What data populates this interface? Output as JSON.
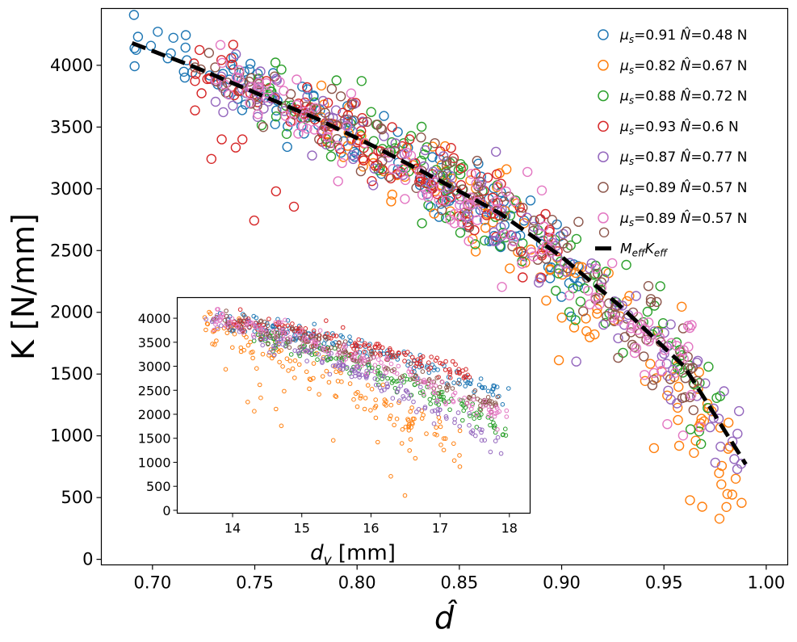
{
  "chart_data": [
    {
      "type": "scatter",
      "role": "main",
      "xlabel": "d̂",
      "ylabel": "K [N/mm]",
      "xlim": [
        0.675,
        1.0105
      ],
      "ylim": [
        -45,
        4460
      ],
      "xticks": [
        0.7,
        0.75,
        0.8,
        0.85,
        0.9,
        0.95,
        1.0
      ],
      "xtick_labels": [
        "0.70",
        "0.75",
        "0.80",
        "0.85",
        "0.90",
        "0.95",
        "1.00"
      ],
      "yticks": [
        0,
        500,
        1000,
        1500,
        2000,
        2500,
        3000,
        3500,
        4000
      ],
      "ytick_labels": [
        "0",
        "500",
        "1000",
        "1500",
        "2000",
        "2500",
        "3000",
        "3500",
        "4000"
      ],
      "legend_position": "top-right",
      "series": [
        {
          "name": "μs=0.91 N̂=0.48 N",
          "mu": "0.91",
          "n": "0.48 N",
          "color": "#1f77b4",
          "x_range": [
            0.69,
            0.91
          ],
          "trend": "approximately following the fit curve, tight spread"
        },
        {
          "name": "μs=0.82 N̂=0.67 N",
          "mu": "0.82",
          "n": "0.67 N",
          "color": "#ff7f0e",
          "x_range": [
            0.78,
            0.99
          ],
          "trend": "below the fit curve at high d̂, wide scatter down to ~150 N/mm"
        },
        {
          "name": "μs=0.88 N̂=0.72 N",
          "mu": "0.88",
          "n": "0.72 N",
          "color": "#2ca02c",
          "x_range": [
            0.75,
            0.98
          ],
          "trend": "along the fit curve"
        },
        {
          "name": "μs=0.93 N̂=0.6 N",
          "mu": "0.93",
          "n": "0.6 N",
          "color": "#d62728",
          "x_range": [
            0.72,
            0.9
          ],
          "trend": "along the fit curve, scattered low points near d̂≈0.72–0.76"
        },
        {
          "name": "μs=0.87 N̂=0.77 N",
          "mu": "0.87",
          "n": "0.77 N",
          "color": "#9467bd",
          "x_range": [
            0.73,
            0.99
          ],
          "trend": "along the fit curve to d̂≈0.99"
        },
        {
          "name": "μs=0.89 N̂=0.57 N",
          "mu": "0.89",
          "n": "0.57 N",
          "color": "#8c564b",
          "x_range": [
            0.72,
            0.97
          ],
          "trend": "along the fit curve"
        },
        {
          "name": "μs=0.89 N̂=0.57 N",
          "mu": "0.89",
          "n": "0.57 N",
          "color": "#e377c2",
          "x_range": [
            0.73,
            0.97
          ],
          "trend": "along the fit curve"
        }
      ],
      "fit": {
        "name": "M_eff K_eff",
        "color": "#000000",
        "x": [
          0.69,
          0.72,
          0.75,
          0.78,
          0.81,
          0.84,
          0.87,
          0.9,
          0.93,
          0.96,
          0.99
        ],
        "y": [
          4180,
          3990,
          3780,
          3570,
          3330,
          3070,
          2800,
          2450,
          2030,
          1560,
          770
        ]
      }
    },
    {
      "type": "scatter",
      "role": "inset",
      "xlabel": "dv [mm]",
      "ylabel": "",
      "xlim": [
        13.2,
        18.3
      ],
      "ylim": [
        -60,
        4430
      ],
      "xticks": [
        14,
        15,
        16,
        17,
        18
      ],
      "xtick_labels": [
        "14",
        "15",
        "16",
        "17",
        "18"
      ],
      "yticks": [
        0,
        500,
        1000,
        1500,
        2000,
        2500,
        3000,
        3500,
        4000
      ],
      "ytick_labels": [
        "0",
        "500",
        "1000",
        "1500",
        "2000",
        "2500",
        "3000",
        "3500",
        "4000"
      ],
      "series": [
        {
          "color": "#1f77b4",
          "x_range": [
            13.8,
            18.0
          ],
          "y_start": 4020,
          "y_end": 2350
        },
        {
          "color": "#ff7f0e",
          "x_range": [
            13.5,
            17.3
          ],
          "y_start": 3850,
          "y_end": 1150
        },
        {
          "color": "#2ca02c",
          "x_range": [
            14.3,
            18.0
          ],
          "y_start": 3650,
          "y_end": 1600
        },
        {
          "color": "#d62728",
          "x_range": [
            13.9,
            17.5
          ],
          "y_start": 3950,
          "y_end": 2750
        },
        {
          "color": "#9467bd",
          "x_range": [
            13.6,
            17.9
          ],
          "y_start": 3950,
          "y_end": 1300
        },
        {
          "color": "#8c564b",
          "x_range": [
            13.7,
            17.9
          ],
          "y_start": 4000,
          "y_end": 2100
        },
        {
          "color": "#e377c2",
          "x_range": [
            13.7,
            18.0
          ],
          "y_start": 4050,
          "y_end": 1800
        }
      ]
    }
  ]
}
